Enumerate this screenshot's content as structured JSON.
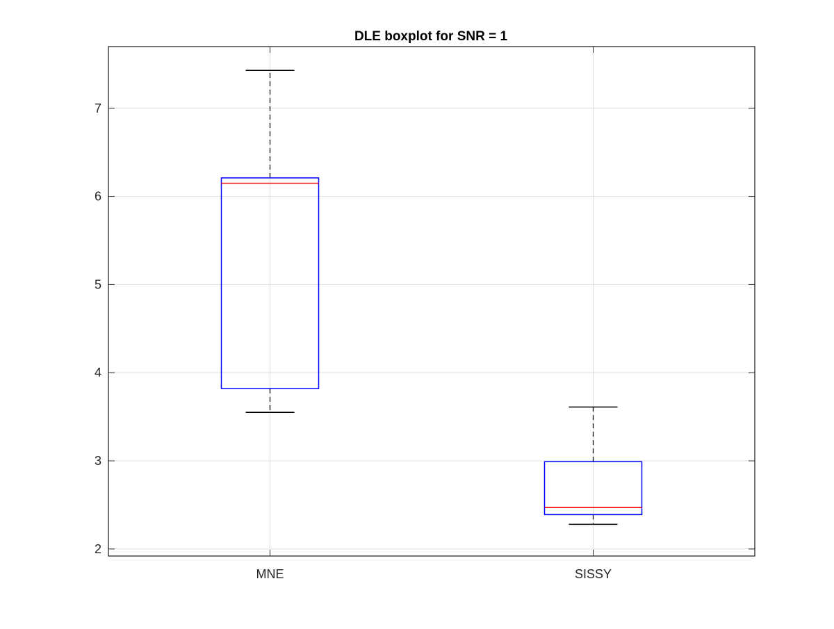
{
  "chart_data": {
    "type": "boxplot",
    "title": "DLE boxplot for SNR = 1",
    "xlabel": "",
    "ylabel": "",
    "categories": [
      "MNE",
      "SISSY"
    ],
    "yticks": [
      "2",
      "3",
      "4",
      "5",
      "6",
      "7"
    ],
    "ylim": [
      1.92,
      7.7
    ],
    "grid": true,
    "boxes": [
      {
        "label": "MNE",
        "whisker_low": 3.55,
        "q1": 3.82,
        "median": 6.15,
        "q3": 6.21,
        "whisker_high": 7.43
      },
      {
        "label": "SISSY",
        "whisker_low": 2.28,
        "q1": 2.39,
        "median": 2.47,
        "q3": 2.99,
        "whisker_high": 3.61
      }
    ],
    "colors": {
      "box": "#0000ff",
      "median": "#ff0000",
      "whisker": "#000000",
      "grid": "#dddddd",
      "axes": "#262626"
    }
  }
}
